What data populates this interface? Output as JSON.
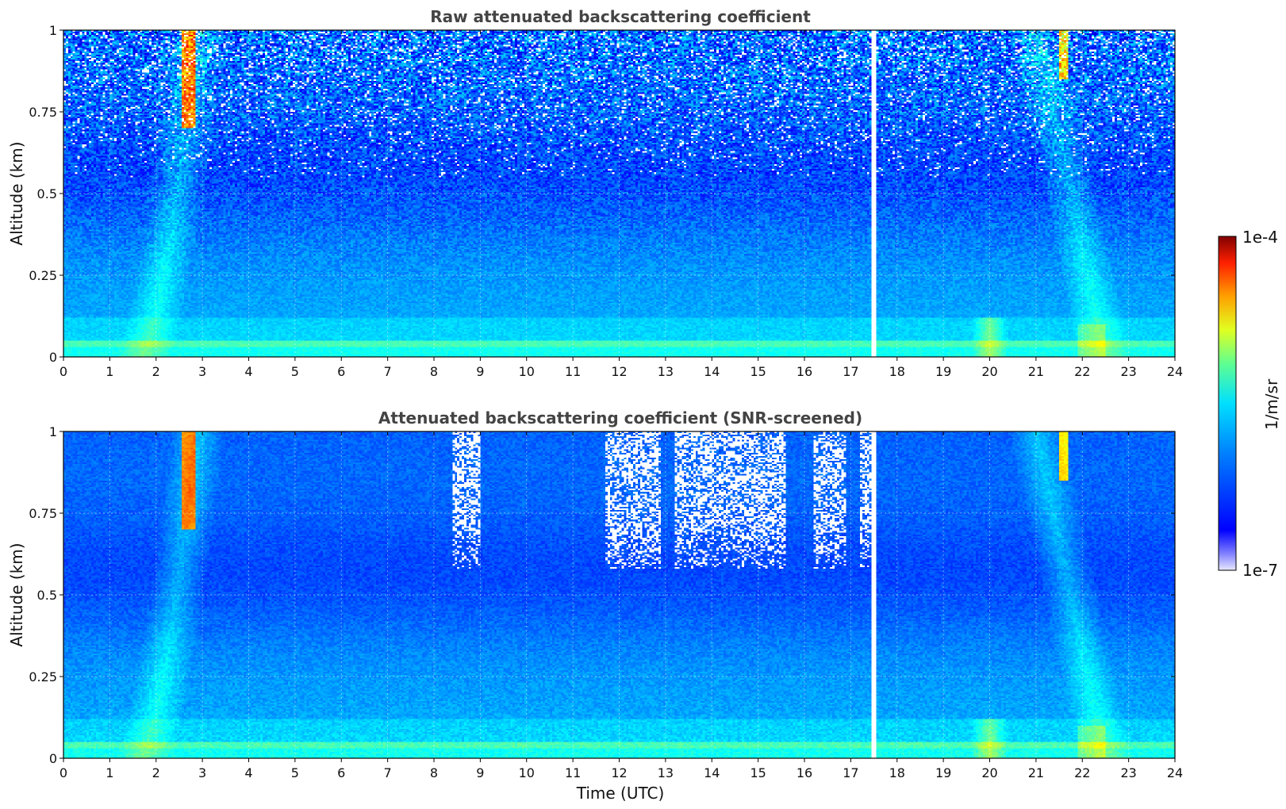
{
  "chart_data": [
    {
      "type": "heatmap",
      "title": "Raw attenuated backscattering coefficient",
      "xlabel": "",
      "ylabel": "Altitude (km)",
      "xlim": [
        0,
        24
      ],
      "ylim": [
        0,
        1
      ],
      "xticks": [
        "0",
        "1",
        "2",
        "3",
        "4",
        "5",
        "6",
        "7",
        "8",
        "9",
        "10",
        "11",
        "12",
        "13",
        "14",
        "15",
        "16",
        "17",
        "18",
        "19",
        "20",
        "21",
        "22",
        "23",
        "24"
      ],
      "yticks": [
        "0",
        "0.25",
        "0.5",
        "0.75",
        "1"
      ],
      "ytick_values": [
        0,
        0.25,
        0.5,
        0.75,
        1
      ],
      "grid": true,
      "screened": false,
      "features": {
        "rising_layer_start_time": 1.5,
        "rising_layer_peak_time": 2.7,
        "descending_layer_start_time": 21.0,
        "descending_layer_end_time": 22.5,
        "gap_time": 17.5,
        "surface_layer_altitude": 0.04
      }
    },
    {
      "type": "heatmap",
      "title": "Attenuated backscattering coefficient (SNR-screened)",
      "xlabel": "Time (UTC)",
      "ylabel": "Altitude (km)",
      "xlim": [
        0,
        24
      ],
      "ylim": [
        0,
        1
      ],
      "xticks": [
        "0",
        "1",
        "2",
        "3",
        "4",
        "5",
        "6",
        "7",
        "8",
        "9",
        "10",
        "11",
        "12",
        "13",
        "14",
        "15",
        "16",
        "17",
        "18",
        "19",
        "20",
        "21",
        "22",
        "23",
        "24"
      ],
      "yticks": [
        "0",
        "0.25",
        "0.5",
        "0.75",
        "1"
      ],
      "ytick_values": [
        0,
        0.25,
        0.5,
        0.75,
        1
      ],
      "grid": true,
      "screened": true,
      "screened_regions_time_range": [
        [
          8.4,
          9.0
        ],
        [
          11.7,
          12.9
        ],
        [
          13.2,
          15.6
        ],
        [
          16.2,
          16.9
        ],
        [
          17.2,
          17.5
        ]
      ]
    }
  ],
  "colorbar": {
    "label": "1/m/sr",
    "max_label": "1e-4",
    "min_label": "1e-7",
    "colormap": "jet"
  }
}
